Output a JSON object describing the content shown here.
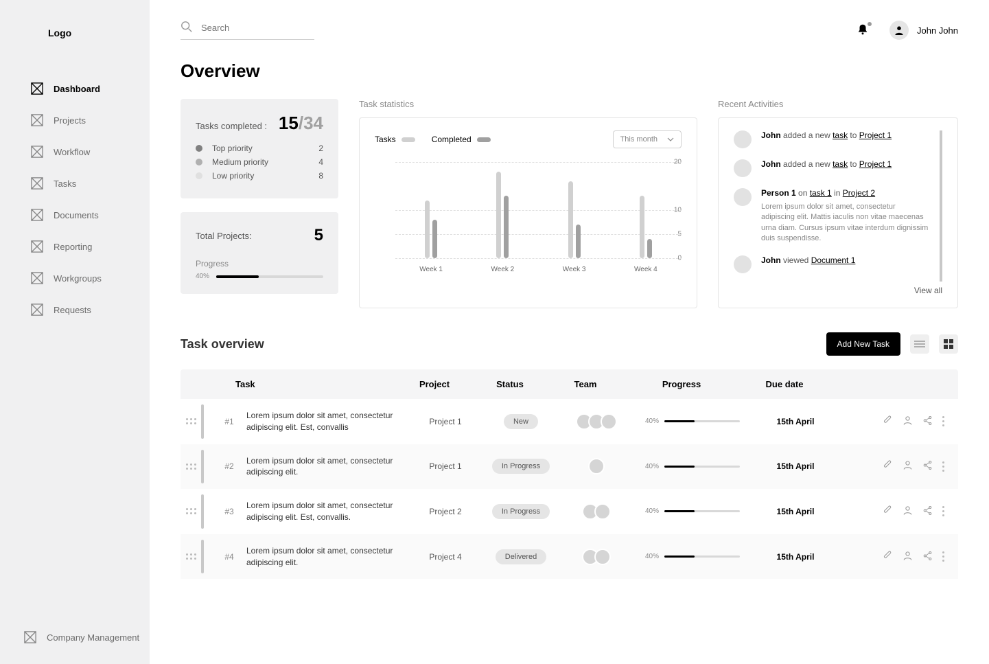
{
  "logo": "Logo",
  "nav": {
    "items": [
      {
        "label": "Dashboard",
        "active": true
      },
      {
        "label": "Projects",
        "active": false
      },
      {
        "label": "Workflow",
        "active": false
      },
      {
        "label": "Tasks",
        "active": false
      },
      {
        "label": "Documents",
        "active": false
      },
      {
        "label": "Reporting",
        "active": false
      },
      {
        "label": "Workgroups",
        "active": false
      },
      {
        "label": "Requests",
        "active": false
      }
    ],
    "footer_label": "Company Management"
  },
  "search": {
    "placeholder": "Search"
  },
  "user": {
    "name": "John John"
  },
  "page_title": "Overview",
  "tasks_completed": {
    "label": "Tasks completed :",
    "done": "15",
    "total": "/34",
    "priorities": [
      {
        "label": "Top priority",
        "value": "2",
        "color": "#808080"
      },
      {
        "label": "Medium priority",
        "value": "4",
        "color": "#b0b0b0"
      },
      {
        "label": "Low priority",
        "value": "8",
        "color": "#e0e0e0"
      }
    ]
  },
  "total_projects": {
    "label": "Total Projects:",
    "value": "5",
    "progress_label": "Progress",
    "progress_pct": "40%",
    "progress_value": 40
  },
  "task_stats": {
    "title": "Task statistics",
    "legend": [
      {
        "label": "Tasks",
        "color": "#d0d0d0"
      },
      {
        "label": "Completed",
        "color": "#a0a0a0"
      }
    ],
    "period": "This month",
    "y_max": 20,
    "y_ticks": [
      20,
      10,
      5,
      0
    ],
    "weeks": [
      {
        "label": "Week 1",
        "tasks": 12,
        "completed": 8
      },
      {
        "label": "Week 2",
        "tasks": 18,
        "completed": 13
      },
      {
        "label": "Week 3",
        "tasks": 16,
        "completed": 7
      },
      {
        "label": "Week 4",
        "tasks": 13,
        "completed": 4
      }
    ]
  },
  "activities": {
    "title": "Recent Activities",
    "view_all": "View all",
    "items": [
      {
        "actor": "John",
        "verb": " added a new ",
        "obj": "task",
        "connector": " to ",
        "target": "Project 1",
        "desc": ""
      },
      {
        "actor": "John",
        "verb": " added a new ",
        "obj": "task",
        "connector": " to ",
        "target": "Project 1",
        "desc": ""
      },
      {
        "actor": "Person 1",
        "verb": " on ",
        "obj": "task 1",
        "connector": " in ",
        "target": "Project 2",
        "desc": "Lorem ipsum dolor sit amet, consectetur adipiscing elit. Mattis iaculis non vitae maecenas urna diam. Cursus ipsum vitae interdum dignissim duis suspendisse."
      },
      {
        "actor": "John",
        "verb": " viewed ",
        "obj": "",
        "connector": "",
        "target": "Document 1",
        "desc": ""
      },
      {
        "actor": "John",
        "verb": " viewed ",
        "obj": "",
        "connector": "",
        "target": "Document 1",
        "desc": ""
      }
    ]
  },
  "task_overview": {
    "title": "Task overview",
    "add_button": "Add New Task",
    "columns": {
      "task": "Task",
      "project": "Project",
      "status": "Status",
      "team": "Team",
      "progress": "Progress",
      "due": "Due date"
    },
    "rows": [
      {
        "id": "#1",
        "desc": "Lorem ipsum dolor sit amet, consectetur adipiscing elit. Est, convallis",
        "project": "Project 1",
        "status": "New",
        "team": 3,
        "progress": 40,
        "due": "15th April"
      },
      {
        "id": "#2",
        "desc": "Lorem ipsum dolor sit amet, consectetur adipiscing elit.",
        "project": "Project 1",
        "status": "In Progress",
        "team": 1,
        "progress": 40,
        "due": "15th April"
      },
      {
        "id": "#3",
        "desc": "Lorem ipsum dolor sit amet, consectetur adipiscing elit. Est, convallis.",
        "project": "Project 2",
        "status": "In Progress",
        "team": 2,
        "progress": 40,
        "due": "15th April"
      },
      {
        "id": "#4",
        "desc": "Lorem ipsum dolor sit amet, consectetur adipiscing elit.",
        "project": "Project 4",
        "status": "Delivered",
        "team": 2,
        "progress": 40,
        "due": "15th April"
      }
    ]
  },
  "colors": {
    "sidebar_bg": "#f0f0f1",
    "text_muted": "#888888",
    "bar_tasks": "#d0d0d0",
    "bar_completed": "#a0a0a0"
  }
}
